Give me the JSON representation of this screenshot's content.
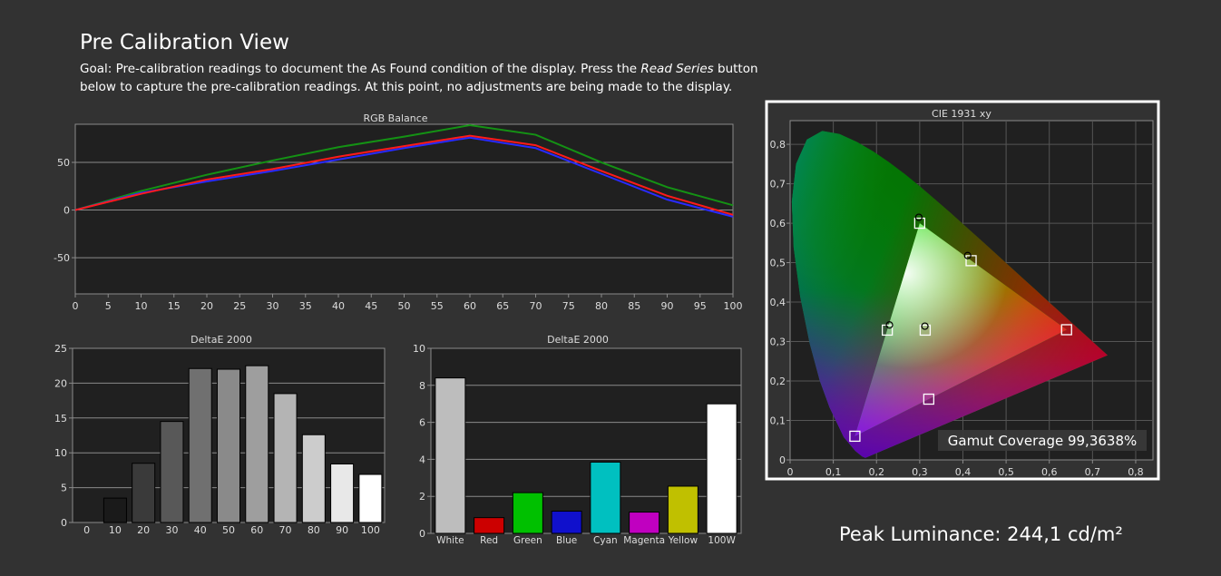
{
  "page": {
    "title": "Pre Calibration View",
    "goal_prefix": "Goal: Pre-calibration readings to document the As Found condition of the display. Press the ",
    "goal_emphasis": "Read Series",
    "goal_suffix": " button below to capture the pre-calibration readings. At this point, no adjustments are being made to the display.",
    "peak_luminance": "Peak Luminance: 244,1 cd/m²"
  },
  "colors": {
    "background": "#323232",
    "plot_background": "#202020",
    "grid": "#8a8a8a",
    "red_line": "#ff1a1a",
    "green_line": "#149214",
    "blue_line": "#2a2aff"
  },
  "chart_data": [
    {
      "id": "rgb_balance",
      "type": "line",
      "title": "RGB Balance",
      "x": [
        0,
        10,
        20,
        30,
        40,
        50,
        60,
        70,
        80,
        90,
        100
      ],
      "xticks": [
        "0",
        "5",
        "10",
        "15",
        "20",
        "25",
        "30",
        "35",
        "40",
        "45",
        "50",
        "55",
        "60",
        "65",
        "70",
        "75",
        "80",
        "85",
        "90",
        "95",
        "100"
      ],
      "xlim": [
        0,
        100
      ],
      "ylim": [
        -88,
        90
      ],
      "yticks": [
        "50",
        "0",
        "-50"
      ],
      "series": [
        {
          "color": "#149214",
          "values": [
            0,
            20,
            37,
            52,
            66,
            77,
            89,
            79,
            50,
            24,
            5
          ]
        },
        {
          "color": "#2a2aff",
          "values": [
            0,
            18,
            30,
            41,
            53,
            65,
            76,
            65,
            38,
            11,
            -7
          ]
        },
        {
          "color": "#ff1a1a",
          "values": [
            0,
            17,
            32,
            43,
            56,
            67,
            78,
            68,
            41,
            15,
            -5
          ]
        }
      ]
    },
    {
      "id": "deltae_grayscale",
      "type": "bar",
      "title": "DeltaE 2000",
      "categories": [
        "0",
        "10",
        "20",
        "30",
        "40",
        "50",
        "60",
        "70",
        "80",
        "90",
        "100"
      ],
      "values": [
        0,
        3.5,
        8.5,
        14.5,
        22.1,
        22.0,
        22.5,
        18.5,
        12.6,
        8.4,
        6.9
      ],
      "fills": [
        "#000000",
        "#1a1a1a",
        "#3a3a3a",
        "#585858",
        "#707070",
        "#8a8a8a",
        "#9e9e9e",
        "#b4b4b4",
        "#cccccc",
        "#e8e8e8",
        "#ffffff"
      ],
      "ylim": [
        0,
        25
      ],
      "yticks": [
        "25",
        "20",
        "15",
        "10",
        "5",
        "0"
      ]
    },
    {
      "id": "deltae_colors",
      "type": "bar",
      "title": "DeltaE 2000",
      "categories": [
        "White",
        "Red",
        "Green",
        "Blue",
        "Cyan",
        "Magenta",
        "Yellow",
        "100W"
      ],
      "values": [
        8.4,
        0.85,
        2.2,
        1.2,
        3.85,
        1.15,
        2.55,
        7.0
      ],
      "fills": [
        "#bdbdbd",
        "#cc0000",
        "#00c000",
        "#1010cc",
        "#00c0c0",
        "#c000c0",
        "#c0c000",
        "#ffffff"
      ],
      "ylim": [
        0,
        10
      ],
      "yticks": [
        "10",
        "8",
        "6",
        "4",
        "2",
        "0"
      ]
    },
    {
      "id": "cie_1931",
      "type": "scatter",
      "title": "CIE 1931 xy",
      "xlim": [
        0,
        0.84
      ],
      "ylim": [
        0,
        0.86
      ],
      "xticks": [
        "0",
        "0,1",
        "0,2",
        "0,3",
        "0,4",
        "0,5",
        "0,6",
        "0,7",
        "0,8"
      ],
      "yticks": [
        "0",
        "0,1",
        "0,2",
        "0,3",
        "0,4",
        "0,5",
        "0,6",
        "0,7",
        "0,8"
      ],
      "gamut_coverage": "Gamut Coverage 99,3638%",
      "targets": [
        {
          "x": 0.64,
          "y": 0.33
        },
        {
          "x": 0.3,
          "y": 0.6
        },
        {
          "x": 0.15,
          "y": 0.06
        },
        {
          "x": 0.225,
          "y": 0.329
        },
        {
          "x": 0.321,
          "y": 0.154
        },
        {
          "x": 0.419,
          "y": 0.505
        },
        {
          "x": 0.3127,
          "y": 0.329
        }
      ],
      "measured": [
        {
          "x": 0.298,
          "y": 0.615
        },
        {
          "x": 0.411,
          "y": 0.518
        },
        {
          "x": 0.23,
          "y": 0.342
        },
        {
          "x": 0.312,
          "y": 0.339
        }
      ]
    }
  ]
}
